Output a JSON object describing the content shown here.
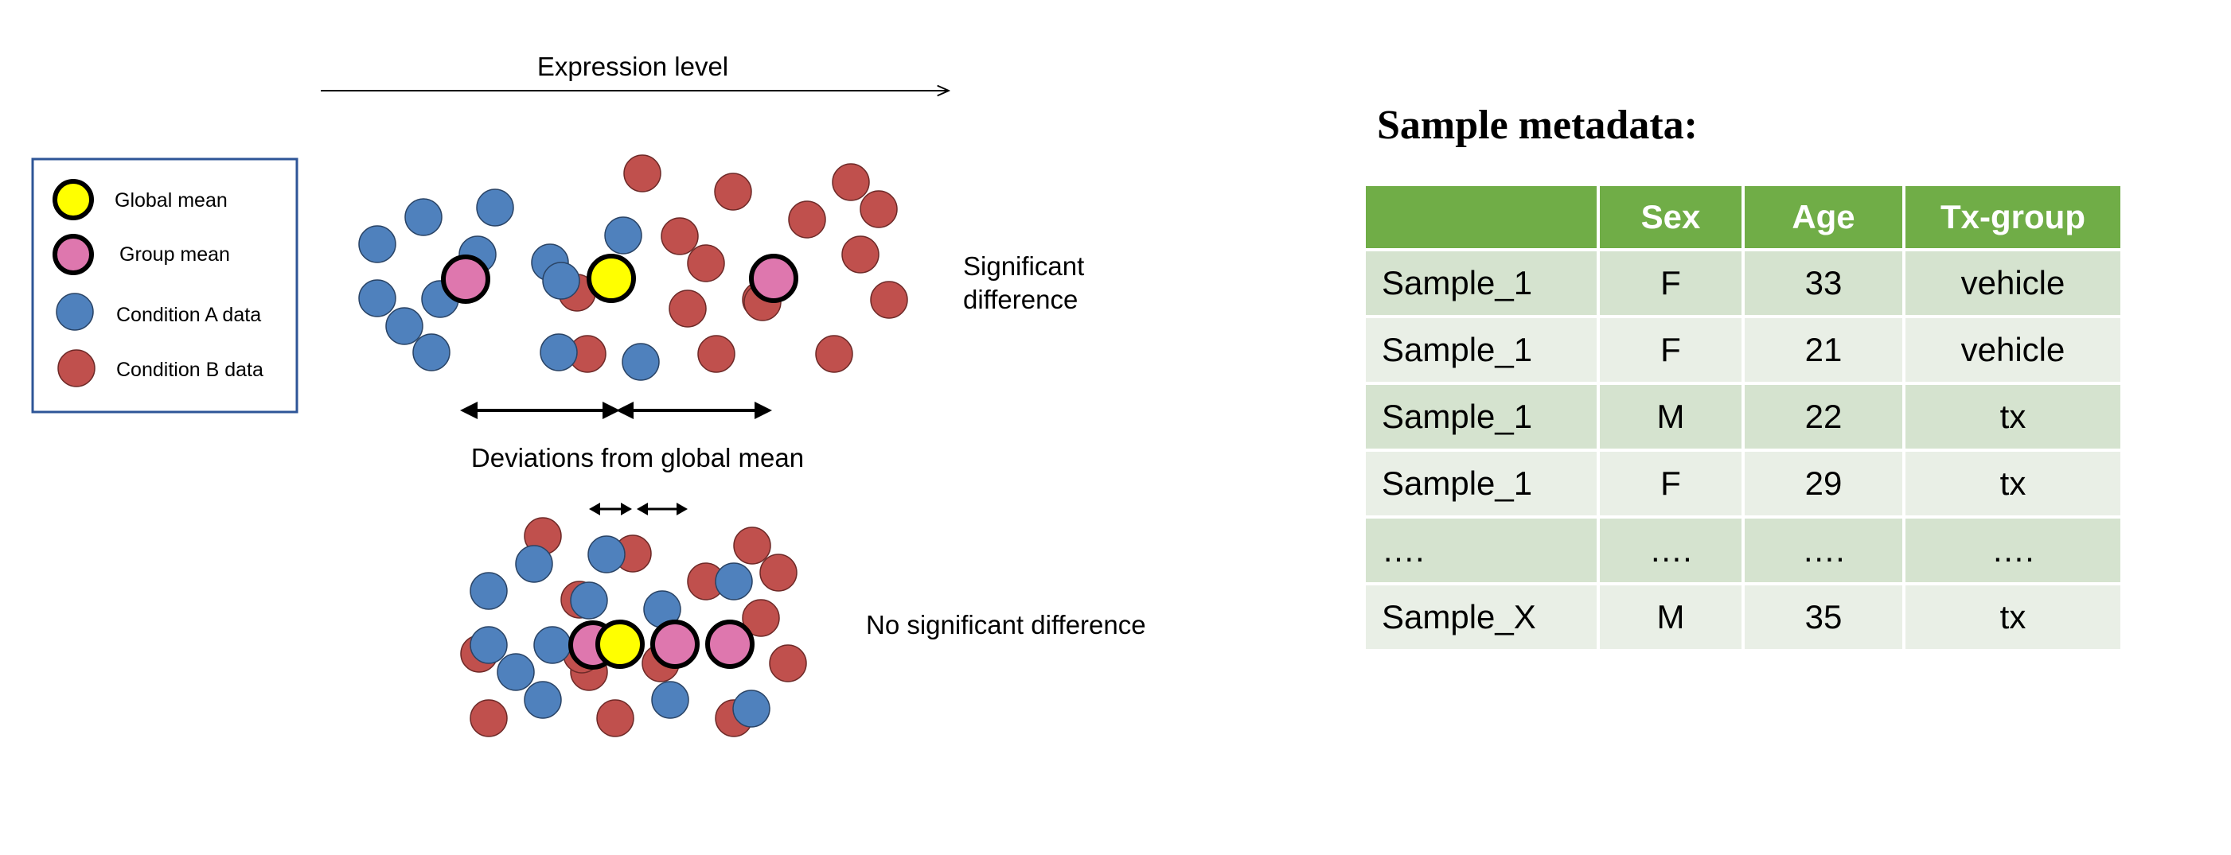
{
  "colors": {
    "condition_a": "#4f81bd",
    "condition_b": "#c0504d",
    "global_mean": "#ffff00",
    "group_mean": "#de77ae",
    "table_header": "#70ad47",
    "legend_border": "#2e5597"
  },
  "diagram": {
    "axis_label": "Expression level",
    "legend": {
      "global_mean": "Global mean",
      "group_mean": "Group mean",
      "condition_a": "Condition A  data",
      "condition_b": "Condition B data"
    },
    "significant_line1": "Significant",
    "significant_line2": "difference",
    "deviations_label": "Deviations from global mean",
    "no_significant_label": "No significant difference"
  },
  "metadata": {
    "title": "Sample metadata:",
    "headers": [
      "",
      "Sex",
      "Age",
      "Tx-group"
    ],
    "rows": [
      [
        "Sample_1",
        "F",
        "33",
        "vehicle"
      ],
      [
        "Sample_1",
        "F",
        "21",
        "vehicle"
      ],
      [
        "Sample_1",
        "M",
        "22",
        "tx"
      ],
      [
        "Sample_1",
        "F",
        "29",
        "tx"
      ],
      [
        "….",
        "….",
        "….",
        "…."
      ],
      [
        "Sample_X",
        "M",
        "35",
        "tx"
      ]
    ]
  }
}
